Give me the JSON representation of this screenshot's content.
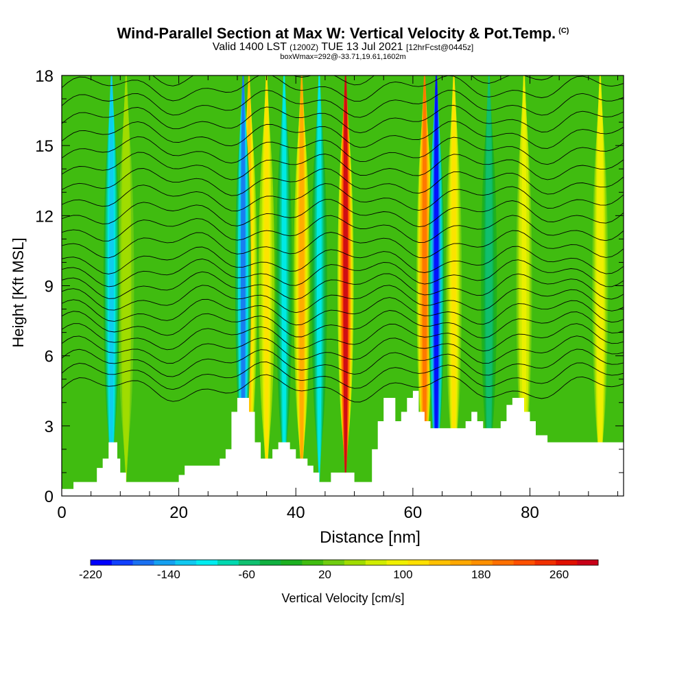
{
  "title": {
    "main": "Wind-Parallel Section at Max W: Vertical Velocity & Pot.Temp.",
    "copyright": "(C)",
    "valid_prefix": "Valid 1400 LST",
    "valid_utc": "(1200Z)",
    "valid_date": "TUE 13 Jul 2021",
    "forecast": "[12hrFcst@0445z]",
    "subline": "boxWmax=292@-33.71,19.61,1602m"
  },
  "chart_data": {
    "type": "heatmap",
    "xlabel": "Distance [nm]",
    "ylabel": "Height [Kft MSL]",
    "xlim": [
      0,
      96
    ],
    "ylim": [
      0,
      18
    ],
    "xticks": [
      0,
      20,
      40,
      60,
      80
    ],
    "yticks": [
      0,
      3,
      6,
      9,
      12,
      15,
      18
    ],
    "colorbar": {
      "label": "Vertical Velocity [cm/s]",
      "tick_labels": [
        -220,
        -140,
        -60,
        20,
        100,
        180,
        260
      ],
      "colors": [
        "#0000ff",
        "#1040ff",
        "#1a70f0",
        "#15a0f0",
        "#10c8f0",
        "#00ecf0",
        "#00d8b0",
        "#10c070",
        "#10b040",
        "#1cb020",
        "#40bc10",
        "#70cc10",
        "#a0dc00",
        "#d0ec00",
        "#f0f000",
        "#ffe000",
        "#ffc000",
        "#ffa800",
        "#ff9000",
        "#ff7000",
        "#ff5000",
        "#f03000",
        "#e01000",
        "#c80018"
      ]
    },
    "updraft_cores": [
      {
        "x": 11,
        "w": 60
      },
      {
        "x": 32,
        "w": 140
      },
      {
        "x": 35,
        "w": 120
      },
      {
        "x": 41,
        "w": 160
      },
      {
        "x": 48.5,
        "w": 280
      },
      {
        "x": 62,
        "w": 200
      },
      {
        "x": 67,
        "w": 110
      },
      {
        "x": 79,
        "w": 90
      },
      {
        "x": 92,
        "w": 100
      }
    ],
    "downdraft_cores": [
      {
        "x": 8.5,
        "w": -120
      },
      {
        "x": 31,
        "w": -160
      },
      {
        "x": 38,
        "w": -110
      },
      {
        "x": 44,
        "w": -100
      },
      {
        "x": 64,
        "w": -220
      },
      {
        "x": 73,
        "w": -60
      }
    ],
    "terrain": [
      [
        0,
        0.3
      ],
      [
        2,
        0.6
      ],
      [
        5,
        0.6
      ],
      [
        6,
        1.2
      ],
      [
        7,
        1.6
      ],
      [
        8,
        2.3
      ],
      [
        9,
        2.3
      ],
      [
        9.5,
        1.6
      ],
      [
        10,
        1.0
      ],
      [
        11,
        0.6
      ],
      [
        18,
        0.6
      ],
      [
        20,
        0.9
      ],
      [
        21,
        1.3
      ],
      [
        24,
        1.3
      ],
      [
        27,
        1.6
      ],
      [
        28,
        2.0
      ],
      [
        29,
        3.6
      ],
      [
        30,
        4.2
      ],
      [
        31,
        4.2
      ],
      [
        32,
        3.6
      ],
      [
        33,
        2.3
      ],
      [
        34,
        1.6
      ],
      [
        35,
        1.6
      ],
      [
        36,
        2.0
      ],
      [
        37,
        2.3
      ],
      [
        39,
        2.0
      ],
      [
        40,
        1.6
      ],
      [
        42,
        1.3
      ],
      [
        43,
        1.0
      ],
      [
        44,
        0.6
      ],
      [
        46,
        1.0
      ],
      [
        49,
        1.0
      ],
      [
        50,
        0.6
      ],
      [
        51,
        0.6
      ],
      [
        53,
        2.0
      ],
      [
        54,
        3.2
      ],
      [
        55,
        4.2
      ],
      [
        56,
        4.2
      ],
      [
        57,
        3.2
      ],
      [
        58,
        3.6
      ],
      [
        59,
        4.2
      ],
      [
        60,
        4.5
      ],
      [
        61,
        3.6
      ],
      [
        62,
        3.2
      ],
      [
        63,
        2.9
      ],
      [
        68,
        2.9
      ],
      [
        69,
        3.2
      ],
      [
        70,
        3.6
      ],
      [
        71,
        3.2
      ],
      [
        72,
        2.9
      ],
      [
        74,
        2.9
      ],
      [
        75,
        3.2
      ],
      [
        76,
        3.9
      ],
      [
        77,
        4.2
      ],
      [
        78,
        4.2
      ],
      [
        79,
        3.6
      ],
      [
        80,
        3.2
      ],
      [
        81,
        2.6
      ],
      [
        83,
        2.3
      ],
      [
        85,
        2.3
      ],
      [
        96,
        2.3
      ]
    ]
  }
}
